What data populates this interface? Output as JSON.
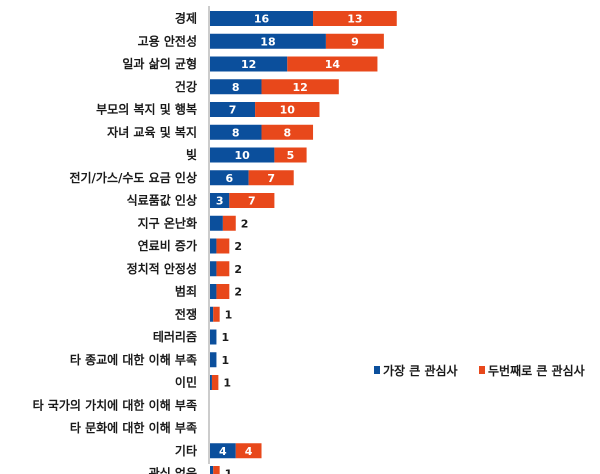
{
  "chart_data": {
    "type": "bar",
    "orientation": "horizontal",
    "stacked": true,
    "title": "",
    "xlabel": "",
    "ylabel": "",
    "grid": false,
    "legend_position": "right",
    "categories": [
      "경제",
      "고용 안전성",
      "일과 삶의 균형",
      "건강",
      "부모의 복지 및 행복",
      "자녀 교육 및 복지",
      "빚",
      "전기/가스/수도 요금 인상",
      "식료품값 인상",
      "지구 온난화",
      "연료비 증가",
      "정치적 안정성",
      "범죄",
      "전쟁",
      "테러리즘",
      "타 종교에 대한 이해 부족",
      "이민",
      "타 국가의 가치에 대한 이해 부족",
      "타 문화에 대한 이해 부족",
      "기타",
      "관심 없음"
    ],
    "series": [
      {
        "name": "가장 큰 관심사",
        "color": "#0b4f9c",
        "values": [
          16,
          18,
          12,
          8,
          7,
          8,
          10,
          6,
          3,
          2,
          1,
          1,
          1,
          0.5,
          1,
          1,
          0.3,
          0,
          0,
          4,
          0.5
        ]
      },
      {
        "name": "두번째로 큰 관심사",
        "color": "#e8481b",
        "values": [
          13,
          9,
          14,
          12,
          10,
          8,
          5,
          7,
          7,
          2,
          2,
          2,
          2,
          1,
          0,
          0,
          1,
          0,
          0,
          4,
          1
        ]
      }
    ],
    "bar_labels": [
      [
        "16",
        "13"
      ],
      [
        "18",
        "9"
      ],
      [
        "12",
        "14"
      ],
      [
        "8",
        "12"
      ],
      [
        "7",
        "10"
      ],
      [
        "8",
        "8"
      ],
      [
        "10",
        "5"
      ],
      [
        "6",
        "7"
      ],
      [
        "3",
        "7"
      ],
      [
        "2",
        "2"
      ],
      [
        "1",
        "2"
      ],
      [
        "1",
        "2"
      ],
      [
        "1",
        "2"
      ],
      [
        "",
        "1"
      ],
      [
        "1",
        ""
      ],
      [
        "1",
        ""
      ],
      [
        "",
        "1"
      ],
      [
        "",
        ""
      ],
      [
        "",
        ""
      ],
      [
        "4",
        "4"
      ],
      [
        "",
        "1"
      ]
    ],
    "xlim": [
      0,
      50
    ]
  }
}
